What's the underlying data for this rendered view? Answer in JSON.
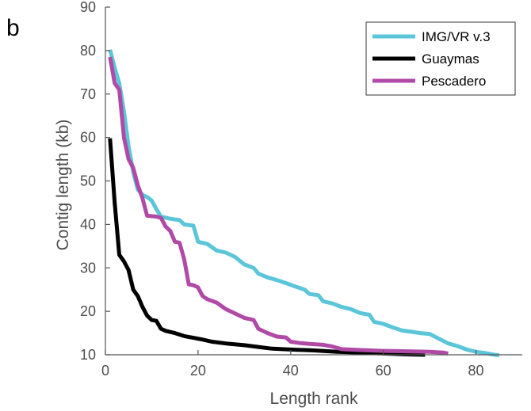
{
  "panel_label": "b",
  "chart_data": {
    "type": "line",
    "title": "",
    "xlabel": "Length rank",
    "ylabel": "Contig length (kb)",
    "xlim": [
      0,
      90
    ],
    "ylim": [
      10,
      90
    ],
    "xticks": [
      0,
      20,
      40,
      60,
      80
    ],
    "yticks": [
      10,
      20,
      30,
      40,
      50,
      60,
      70,
      80,
      90
    ],
    "grid": false,
    "legend": "top-right",
    "series": [
      {
        "name": "IMG/VR v.3",
        "color": "#5bc5d9",
        "points": [
          [
            1,
            80.2
          ],
          [
            2,
            76.0
          ],
          [
            3,
            72.5
          ],
          [
            4,
            66.0
          ],
          [
            5,
            58.0
          ],
          [
            6,
            52.0
          ],
          [
            7,
            48.0
          ],
          [
            8,
            46.8
          ],
          [
            9,
            46.3
          ],
          [
            10,
            45.5
          ],
          [
            11,
            43.5
          ],
          [
            12,
            41.8
          ],
          [
            14,
            41.3
          ],
          [
            16,
            41.0
          ],
          [
            17,
            40.0
          ],
          [
            19,
            39.7
          ],
          [
            20,
            36.0
          ],
          [
            22,
            35.5
          ],
          [
            24,
            34.0
          ],
          [
            26,
            33.5
          ],
          [
            28,
            32.5
          ],
          [
            30,
            30.8
          ],
          [
            32,
            30.0
          ],
          [
            33,
            28.7
          ],
          [
            35,
            27.8
          ],
          [
            37,
            27.2
          ],
          [
            39,
            26.5
          ],
          [
            41,
            25.7
          ],
          [
            43,
            25.0
          ],
          [
            44,
            24.0
          ],
          [
            46,
            23.7
          ],
          [
            47,
            22.3
          ],
          [
            49,
            21.8
          ],
          [
            51,
            21.0
          ],
          [
            53,
            20.5
          ],
          [
            55,
            19.6
          ],
          [
            57,
            19.2
          ],
          [
            58,
            17.6
          ],
          [
            60,
            17.1
          ],
          [
            62,
            16.3
          ],
          [
            64,
            15.6
          ],
          [
            66,
            15.3
          ],
          [
            68,
            15.0
          ],
          [
            70,
            14.8
          ],
          [
            72,
            13.7
          ],
          [
            74,
            12.6
          ],
          [
            76,
            12.0
          ],
          [
            78,
            11.2
          ],
          [
            80,
            10.7
          ],
          [
            82,
            10.4
          ],
          [
            84,
            10.0
          ],
          [
            85,
            9.9
          ]
        ]
      },
      {
        "name": "Guaymas",
        "color": "#000000",
        "points": [
          [
            1,
            59.8
          ],
          [
            2,
            45.0
          ],
          [
            3,
            33.0
          ],
          [
            4,
            31.5
          ],
          [
            5,
            29.5
          ],
          [
            6,
            25.0
          ],
          [
            7,
            23.5
          ],
          [
            8,
            21.0
          ],
          [
            9,
            19.0
          ],
          [
            10,
            18.0
          ],
          [
            11,
            17.8
          ],
          [
            12,
            16.0
          ],
          [
            13,
            15.5
          ],
          [
            15,
            15.0
          ],
          [
            17,
            14.3
          ],
          [
            19,
            13.9
          ],
          [
            21,
            13.5
          ],
          [
            23,
            13.0
          ],
          [
            26,
            12.6
          ],
          [
            30,
            12.2
          ],
          [
            33,
            11.8
          ],
          [
            36,
            11.4
          ],
          [
            40,
            11.2
          ],
          [
            45,
            11.0
          ],
          [
            50,
            10.7
          ],
          [
            55,
            10.5
          ],
          [
            60,
            10.3
          ],
          [
            65,
            10.1
          ],
          [
            69,
            10.0
          ]
        ]
      },
      {
        "name": "Pescadero",
        "color": "#b04aa6",
        "points": [
          [
            1,
            78.5
          ],
          [
            2,
            72.5
          ],
          [
            3,
            71.0
          ],
          [
            4,
            60.0
          ],
          [
            5,
            55.0
          ],
          [
            6,
            53.0
          ],
          [
            7,
            49.0
          ],
          [
            8,
            46.0
          ],
          [
            9,
            42.0
          ],
          [
            11,
            41.8
          ],
          [
            12,
            41.5
          ],
          [
            13,
            39.5
          ],
          [
            14,
            38.5
          ],
          [
            15,
            36.0
          ],
          [
            16,
            35.8
          ],
          [
            17,
            32.0
          ],
          [
            18,
            26.2
          ],
          [
            19,
            26.0
          ],
          [
            20,
            25.5
          ],
          [
            21,
            23.5
          ],
          [
            22,
            22.8
          ],
          [
            24,
            22.0
          ],
          [
            26,
            20.5
          ],
          [
            28,
            19.5
          ],
          [
            30,
            18.5
          ],
          [
            32,
            18.0
          ],
          [
            33,
            16.0
          ],
          [
            35,
            15.0
          ],
          [
            37,
            14.2
          ],
          [
            39,
            14.0
          ],
          [
            40,
            13.0
          ],
          [
            42,
            12.7
          ],
          [
            44,
            12.5
          ],
          [
            47,
            12.3
          ],
          [
            49,
            11.9
          ],
          [
            51,
            11.3
          ],
          [
            55,
            11.1
          ],
          [
            60,
            10.9
          ],
          [
            65,
            10.8
          ],
          [
            70,
            10.7
          ],
          [
            73,
            10.5
          ],
          [
            74,
            10.3
          ]
        ]
      }
    ]
  }
}
